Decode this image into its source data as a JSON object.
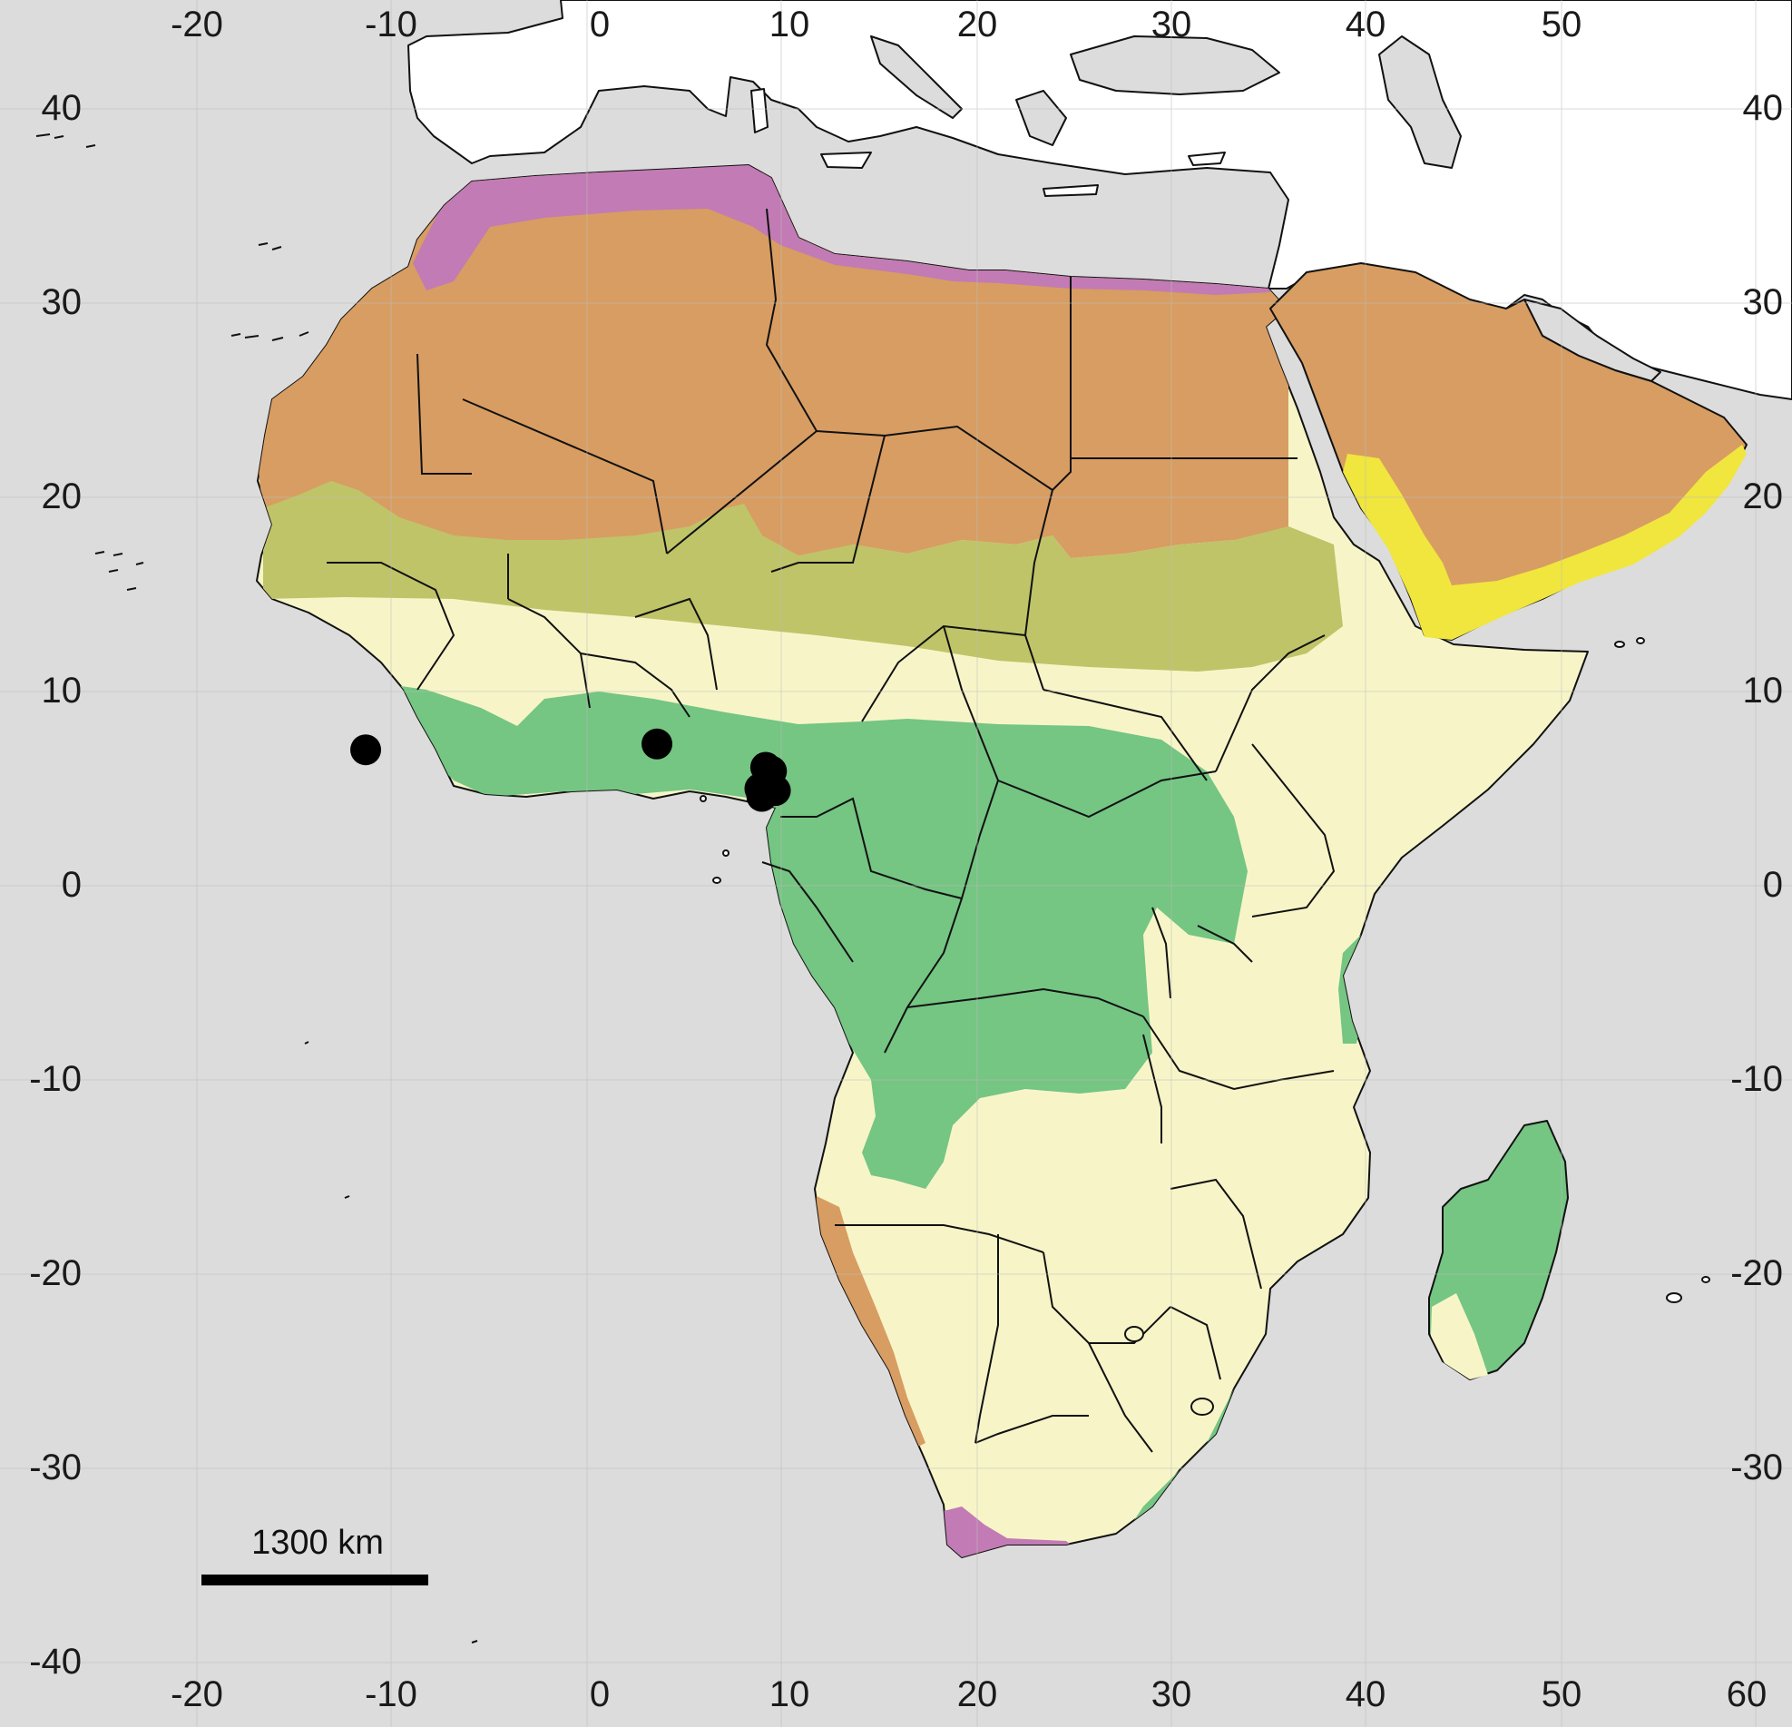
{
  "colors": {
    "ocean": "#dcdcdc",
    "land_outside": "#ffffff",
    "background_zone": "#f7f5c8",
    "desert": "#d89d62",
    "mediterranean": "#c27bb4",
    "semi_arid": "#bfc468",
    "forest": "#75c583",
    "hot_arid": "#f0e63e",
    "points": "#000000"
  },
  "axes": {
    "top_ticks": [
      "-20",
      "-10",
      "0",
      "10",
      "20",
      "30",
      "40",
      "50"
    ],
    "bottom_ticks": [
      "-20",
      "-10",
      "0",
      "10",
      "20",
      "30",
      "40",
      "50",
      "60"
    ],
    "left_ticks": [
      "40",
      "30",
      "20",
      "10",
      "0",
      "-10",
      "-20",
      "-30",
      "-40"
    ],
    "right_ticks": [
      "40",
      "30",
      "20",
      "10",
      "0",
      "-10",
      "-20",
      "-30"
    ]
  },
  "scale_bar": {
    "label": "1300 km"
  },
  "occurrence_points": [
    {
      "lon": -11.4,
      "lat": 7.0
    },
    {
      "lon": 3.6,
      "lat": 7.3
    },
    {
      "lon": 8.9,
      "lat": 5.0
    },
    {
      "lon": 9.3,
      "lat": 5.4
    },
    {
      "lon": 9.5,
      "lat": 5.9
    },
    {
      "lon": 9.0,
      "lat": 4.6
    },
    {
      "lon": 9.7,
      "lat": 4.9
    },
    {
      "lon": 9.2,
      "lat": 6.1
    }
  ]
}
